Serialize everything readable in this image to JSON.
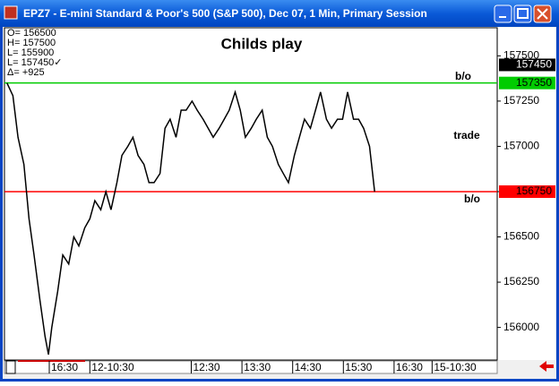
{
  "window": {
    "title": "EPZ7 - E-mini Standard & Poor's 500 (S&P 500), Dec 07, 1 Min, Primary Session"
  },
  "chart_data": {
    "type": "line",
    "title": "Childs play",
    "info": [
      "O=  156500",
      "H=  157500",
      "L=  155900",
      "L=  157450✓",
      "Δ=    +925"
    ],
    "annotations": [
      "b/o",
      "trade",
      "b/o"
    ],
    "series": [
      {
        "name": "EPZ7",
        "color": "#000000",
        "x": [
          -98,
          -91,
          -85,
          -78,
          -72,
          -66,
          -59,
          -53,
          -49,
          -45,
          -38,
          -32,
          -25,
          -19,
          -13,
          -6,
          0,
          6,
          13,
          19,
          25,
          32,
          38,
          45,
          51,
          57,
          64,
          70,
          76,
          83,
          89,
          95,
          102,
          108,
          114,
          121,
          127,
          134,
          140,
          146,
          153,
          159,
          165,
          172,
          178,
          184,
          191,
          197,
          204,
          210,
          216,
          223,
          229,
          235,
          242,
          248,
          254,
          261,
          267,
          273,
          280,
          286,
          293,
          299,
          305,
          312,
          318,
          324,
          331,
          337
        ],
        "values": [
          157350,
          157280,
          157050,
          156900,
          156600,
          156400,
          156150,
          155950,
          155850,
          156000,
          156200,
          156400,
          156350,
          156500,
          156450,
          156550,
          156600,
          156700,
          156650,
          156750,
          156650,
          156800,
          156950,
          157000,
          157050,
          156950,
          156900,
          156800,
          156800,
          156850,
          157100,
          157150,
          157050,
          157200,
          157200,
          157250,
          157200,
          157150,
          157100,
          157050,
          157100,
          157150,
          157200,
          157300,
          157200,
          157050,
          157100,
          157150,
          157200,
          157050,
          157000,
          156900,
          156850,
          156800,
          156950,
          157050,
          157150,
          157100,
          157200,
          157300,
          157150,
          157100,
          157150,
          157150,
          157300,
          157150,
          157150,
          157100,
          157000,
          156750
        ]
      }
    ],
    "price_markers": [
      {
        "value": 157450,
        "color": "#000000",
        "line": false
      },
      {
        "value": 157350,
        "color": "#00cc00",
        "line": true
      },
      {
        "value": 156750,
        "color": "#ff0000",
        "line": true
      }
    ],
    "xlim": [
      -101,
      482
    ],
    "xticks": [
      {
        "value": -48,
        "label": "16:30"
      },
      {
        "value": 0,
        "label": "12-10:30"
      },
      {
        "value": 120,
        "label": "12:30"
      },
      {
        "value": 180,
        "label": "13:30"
      },
      {
        "value": 240,
        "label": "14:30"
      },
      {
        "value": 300,
        "label": "15:30"
      },
      {
        "value": 360,
        "label": "16:30"
      },
      {
        "value": 405,
        "label": "15-10:30"
      }
    ],
    "ylim": [
      155820,
      157655
    ],
    "yticks": [
      156000,
      156250,
      156500,
      156750,
      157000,
      157250,
      157500
    ]
  }
}
